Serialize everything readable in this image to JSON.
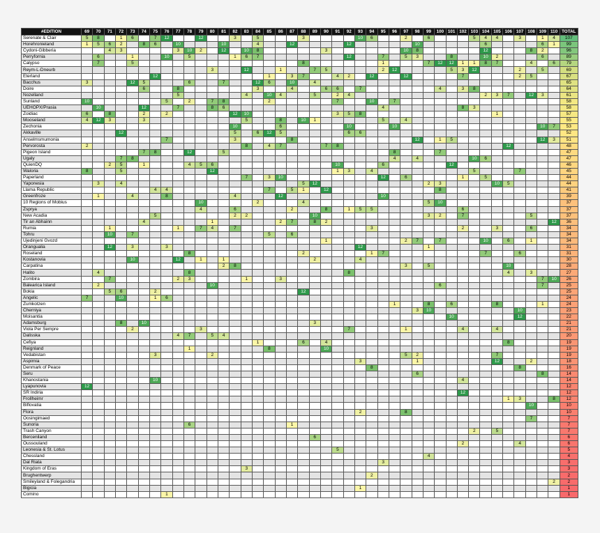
{
  "table": {
    "headers": [
      "#EDITION",
      "69",
      "70",
      "71",
      "72",
      "73",
      "74",
      "75",
      "76",
      "77",
      "78",
      "79",
      "80",
      "81",
      "82",
      "83",
      "84",
      "85",
      "86",
      "87",
      "88",
      "89",
      "90",
      "91",
      "92",
      "93",
      "94",
      "95",
      "96",
      "97",
      "98",
      "99",
      "100",
      "101",
      "102",
      "103",
      "104",
      "105",
      "106",
      "107",
      "108",
      "109",
      "110",
      "TOTAL"
    ],
    "rows": [
      {
        "name": "Serenate & Clair",
        "scores": {
          "69": 5,
          "70": 8,
          "72": 1,
          "73": 6,
          "75": 7,
          "76": 12,
          "79": 12,
          "82": 3,
          "84": 5,
          "88": 3,
          "93": 10,
          "94": 6,
          "97": 2,
          "99": 6,
          "103": 5,
          "104": 4,
          "105": 4,
          "107": 3,
          "109": 1,
          "110": 4
        },
        "total": 107
      },
      {
        "name": "Horehronieland",
        "scores": {
          "69": 1,
          "70": 5,
          "71": 6,
          "72": 2,
          "74": 8,
          "75": 6,
          "77": 10,
          "81": 10,
          "84": 4,
          "87": 12,
          "92": 12,
          "98": 10,
          "104": 6,
          "109": 6,
          "110": 1
        },
        "total": 99
      },
      {
        "name": "Cydoni-Gibberia",
        "scores": {
          "71": 4,
          "72": 3,
          "77": 3,
          "78": 10,
          "79": 2,
          "81": 12,
          "83": 10,
          "84": 8,
          "90": 3,
          "97": 10,
          "98": 8,
          "104": 12,
          "108": 8,
          "109": 2
        },
        "total": 96
      },
      {
        "name": "Perryfornia",
        "scores": {
          "70": 6,
          "73": 1,
          "76": 10,
          "78": 5,
          "82": 1,
          "83": 6,
          "84": 7,
          "92": 12,
          "95": 7,
          "97": 5,
          "98": 3,
          "101": 8,
          "104": 10,
          "105": 2,
          "109": 6
        },
        "total": 89
      },
      {
        "name": "Calypso",
        "scores": {
          "70": 7,
          "73": 5,
          "88": 8,
          "95": 1,
          "99": 7,
          "100": 12,
          "101": 12,
          "102": 1,
          "103": 1,
          "104": 8,
          "105": 7,
          "108": 4,
          "110": 6
        },
        "total": 79
      },
      {
        "name": "Reym-L-Dneurb",
        "scores": {
          "80": 3,
          "83": 12,
          "86": 1,
          "89": 7,
          "90": 5,
          "95": 2,
          "96": 12,
          "101": 5,
          "102": 3,
          "103": 12,
          "107": 2,
          "109": 5
        },
        "total": 69
      },
      {
        "name": "Eterland",
        "scores": {
          "75": 12,
          "85": 1,
          "87": 3,
          "88": 7,
          "91": 4,
          "92": 2,
          "94": 12,
          "97": 12,
          "102": 7,
          "107": 2,
          "108": 5
        },
        "total": 67
      },
      {
        "name": "Bacchus",
        "scores": {
          "69": 3,
          "73": 12,
          "74": 5,
          "78": 6,
          "81": 7,
          "84": 12,
          "85": 6,
          "87": 10,
          "89": 4
        },
        "total": 65
      },
      {
        "name": "Doire",
        "scores": {
          "74": 6,
          "77": 8,
          "84": 3,
          "87": 4,
          "90": 6,
          "91": 6,
          "93": 7,
          "100": 4,
          "102": 3,
          "103": 8
        },
        "total": 64
      },
      {
        "name": "Nozelland",
        "scores": {
          "77": 5,
          "83": 4,
          "85": 10,
          "86": 4,
          "89": 5,
          "91": 2,
          "92": 4,
          "104": 2,
          "105": 3,
          "106": 7,
          "108": 12,
          "109": 3
        },
        "total": 61
      },
      {
        "name": "Sunland",
        "scores": {
          "69": 10,
          "76": 5,
          "78": 2,
          "80": 7,
          "81": 8,
          "85": 2,
          "91": 7,
          "94": 10,
          "96": 7
        },
        "total": 58
      },
      {
        "name": "UEHOPX/Prasia",
        "scores": {
          "70": 10,
          "74": 12,
          "77": 7,
          "80": 8,
          "81": 6,
          "95": 4,
          "102": 8,
          "103": 3
        },
        "total": 58
      },
      {
        "name": "Zoidiac",
        "scores": {
          "69": 6,
          "71": 8,
          "74": 2,
          "76": 2,
          "82": 12,
          "83": 10,
          "91": 3,
          "92": 5,
          "93": 8,
          "105": 1
        },
        "total": 57
      },
      {
        "name": "Mooseland",
        "scores": {
          "69": 4,
          "70": 12,
          "71": 3,
          "74": 3,
          "83": 5,
          "86": 8,
          "88": 10,
          "89": 1,
          "95": 5,
          "97": 4
        },
        "total": 55
      },
      {
        "name": "Zechonia",
        "scores": {
          "82": 10,
          "86": 6,
          "92": 10,
          "96": 10,
          "109": 10,
          "110": 7
        },
        "total": 53
      },
      {
        "name": "Akkaville",
        "scores": {
          "72": 12,
          "82": 5,
          "84": 6,
          "85": 12,
          "86": 5,
          "92": 6,
          "93": 6
        },
        "total": 52
      },
      {
        "name": "Anselmsmumonia",
        "scores": {
          "76": 7,
          "82": 3,
          "87": 8,
          "98": 12,
          "100": 1,
          "101": 5,
          "109": 12,
          "110": 3
        },
        "total": 51
      },
      {
        "name": "Pervorosta",
        "scores": {
          "69": 2,
          "83": 8,
          "85": 4,
          "86": 7,
          "90": 7,
          "91": 8,
          "106": 12
        },
        "total": 48
      },
      {
        "name": "Pigeon Island",
        "scores": {
          "74": 7,
          "75": 8,
          "78": 12,
          "81": 5,
          "96": 8,
          "100": 7
        },
        "total": 47
      },
      {
        "name": "Ugaly",
        "scores": {
          "72": 7,
          "73": 8,
          "96": 4,
          "98": 4,
          "103": 10,
          "104": 6
        },
        "total": 47
      },
      {
        "name": "QuienDQ",
        "scores": {
          "71": 2,
          "72": 5,
          "74": 1,
          "78": 4,
          "79": 5,
          "80": 6,
          "91": 10,
          "95": 6,
          "101": 12
        },
        "total": 46
      },
      {
        "name": "Waloria",
        "scores": {
          "69": 8,
          "72": 5,
          "80": 12,
          "91": 1,
          "92": 3,
          "94": 4,
          "103": 5,
          "107": 7
        },
        "total": 45
      },
      {
        "name": "Paperland",
        "scores": {
          "83": 7,
          "85": 3,
          "86": 10,
          "95": 12,
          "97": 6,
          "102": 1,
          "104": 5
        },
        "total": 44
      },
      {
        "name": "Yaponesia",
        "scores": {
          "70": 3,
          "72": 4,
          "88": 5,
          "89": 12,
          "99": 2,
          "100": 3,
          "105": 10,
          "106": 5
        },
        "total": 44
      },
      {
        "name": "Llama Republic",
        "scores": {
          "75": 4,
          "76": 4,
          "85": 7,
          "87": 5,
          "88": 1,
          "90": 12,
          "100": 8
        },
        "total": 41
      },
      {
        "name": "Greenfroze",
        "scores": {
          "70": 1,
          "73": 4,
          "76": 8,
          "82": 4,
          "86": 12,
          "95": 10
        },
        "total": 39
      },
      {
        "name": "10 Regions of Mobius",
        "scores": {
          "79": 10,
          "84": 2,
          "88": 4,
          "99": 5,
          "100": 10
        },
        "total": 37
      },
      {
        "name": "Zsprya",
        "scores": {
          "79": 4,
          "82": 6,
          "87": 2,
          "90": 8,
          "92": 1,
          "93": 5,
          "94": 5,
          "102": 6
        },
        "total": 37
      },
      {
        "name": "New Acadia",
        "scores": {
          "75": 5,
          "82": 2,
          "83": 2,
          "89": 10,
          "99": 3,
          "100": 2,
          "102": 7,
          "108": 5
        },
        "total": 37
      },
      {
        "name": "Tir an Abhainn",
        "scores": {
          "74": 4,
          "80": 1,
          "86": 2,
          "87": 7,
          "89": 8,
          "90": 2,
          "110": 12
        },
        "total": 36
      },
      {
        "name": "Rumia",
        "scores": {
          "71": 1,
          "77": 1,
          "79": 7,
          "80": 4,
          "82": 7,
          "94": 3,
          "102": 2,
          "105": 3,
          "108": 6
        },
        "total": 34
      },
      {
        "name": "Tohru",
        "scores": {
          "71": 10,
          "73": 7,
          "85": 5,
          "87": 6
        },
        "total": 34
      },
      {
        "name": "Ujedinjeni Gvozd",
        "scores": {
          "90": 1,
          "97": 2,
          "98": 7,
          "100": 7,
          "104": 10,
          "106": 6,
          "108": 1
        },
        "total": 34
      },
      {
        "name": "Orangualia",
        "scores": {
          "71": 12,
          "73": 3,
          "76": 3,
          "93": 12,
          "99": 1
        },
        "total": 31
      },
      {
        "name": "Roseland",
        "scores": {
          "78": 8,
          "88": 2,
          "94": 1,
          "95": 7,
          "104": 7,
          "107": 6
        },
        "total": 31
      },
      {
        "name": "Kostanovia",
        "scores": {
          "73": 10,
          "77": 12,
          "79": 1,
          "81": 1,
          "89": 2,
          "93": 4
        },
        "total": 30
      },
      {
        "name": "Carpatina",
        "scores": {
          "81": 2,
          "82": 8,
          "97": 3,
          "99": 5,
          "106": 10
        },
        "total": 28
      },
      {
        "name": "Halito",
        "scores": {
          "70": 4,
          "78": 8,
          "92": 8,
          "106": 4,
          "108": 3
        },
        "total": 27
      },
      {
        "name": "Zombira",
        "scores": {
          "71": 7,
          "77": 2,
          "78": 3,
          "83": 1,
          "86": 3,
          "109": 7,
          "110": 10
        },
        "total": 26
      },
      {
        "name": "Balearica Island",
        "scores": {
          "70": 2,
          "80": 10,
          "100": 6,
          "109": 7
        },
        "total": 25
      },
      {
        "name": "Bokia",
        "scores": {
          "71": 5,
          "72": 6,
          "75": 2,
          "88": 12
        },
        "total": 25
      },
      {
        "name": "Angelic",
        "scores": {
          "69": 7,
          "72": 10,
          "75": 1,
          "76": 6
        },
        "total": 24
      },
      {
        "name": "Zumkotzen",
        "scores": {
          "96": 1,
          "99": 8,
          "101": 6,
          "105": 8,
          "109": 1
        },
        "total": 24
      },
      {
        "name": "Cherniya",
        "scores": {
          "98": 3,
          "99": 10,
          "107": 10
        },
        "total": 23
      },
      {
        "name": "Moisantia",
        "scores": {
          "101": 10,
          "107": 12
        },
        "total": 22
      },
      {
        "name": "Adamsburg",
        "scores": {
          "72": 8,
          "74": 10,
          "89": 3
        },
        "total": 21
      },
      {
        "name": "Viola Per Sempre",
        "scores": {
          "73": 2,
          "79": 3,
          "92": 7,
          "97": 1,
          "102": 4,
          "105": 4
        },
        "total": 21
      },
      {
        "name": "Dalisska",
        "scores": {
          "77": 4,
          "78": 7,
          "80": 5,
          "81": 4
        },
        "total": 20
      },
      {
        "name": "Cefiya",
        "scores": {
          "84": 1,
          "88": 6,
          "90": 4,
          "106": 8
        },
        "total": 19
      },
      {
        "name": "Reignland",
        "scores": {
          "78": 1,
          "85": 8,
          "90": 10
        },
        "total": 19
      },
      {
        "name": "Vedabistan",
        "scores": {
          "75": 3,
          "80": 2,
          "97": 5,
          "98": 2,
          "105": 7
        },
        "total": 19
      },
      {
        "name": "Aspirnia",
        "scores": {
          "93": 3,
          "98": 1,
          "105": 12,
          "108": 2
        },
        "total": 18
      },
      {
        "name": "Denmark of Peace",
        "scores": {
          "94": 8,
          "107": 8
        },
        "total": 16
      },
      {
        "name": "Seru",
        "scores": {
          "98": 6,
          "109": 8
        },
        "total": 14
      },
      {
        "name": "Khanostania",
        "scores": {
          "75": 10,
          "102": 4
        },
        "total": 14
      },
      {
        "name": "Lyapunovia",
        "scores": {
          "69": 12
        },
        "total": 12
      },
      {
        "name": "SR Indiria",
        "scores": {
          "102": 12
        },
        "total": 12
      },
      {
        "name": "Frollheimr",
        "scores": {
          "106": 1,
          "107": 3,
          "110": 8
        },
        "total": 12
      },
      {
        "name": "Biflovatia",
        "scores": {
          "108": 10
        },
        "total": 10
      },
      {
        "name": "Flora",
        "scores": {
          "93": 2,
          "97": 8
        },
        "total": 10
      },
      {
        "name": "Oosingimaed",
        "scores": {
          "108": 7
        },
        "total": 7
      },
      {
        "name": "Sunoria",
        "scores": {
          "78": 6,
          "87": 1
        },
        "total": 7
      },
      {
        "name": "Trash Canyon",
        "scores": {
          "103": 2,
          "105": 5
        },
        "total": 7
      },
      {
        "name": "Berceniland",
        "scores": {
          "89": 6
        },
        "total": 6
      },
      {
        "name": "Oussouland",
        "scores": {
          "102": 2,
          "107": 4
        },
        "total": 6
      },
      {
        "name": "Leonesia & St. Lotus",
        "scores": {
          "91": 5
        },
        "total": 5
      },
      {
        "name": "Chessland",
        "scores": {
          "99": 4
        },
        "total": 4
      },
      {
        "name": "Dal Riata",
        "scores": {
          "95": 3
        },
        "total": 3
      },
      {
        "name": "Kingdom of Eras",
        "scores": {
          "83": 3
        },
        "total": 3
      },
      {
        "name": "Brughentwerp",
        "scores": {
          "94": 2
        },
        "total": 2
      },
      {
        "name": "Smileyland & Folegandria",
        "scores": {
          "110": 2
        },
        "total": 2
      },
      {
        "name": "Bigicia",
        "scores": {
          "93": 1
        },
        "total": 1
      },
      {
        "name": "Comino",
        "scores": {
          "76": 1
        },
        "total": 1
      }
    ]
  },
  "colors": {
    "header_bg": "#141414",
    "header_text": "#ffffff",
    "row_alt": "#e4e4e4",
    "total_high": "#63be7b",
    "total_mid": "#ffeb84",
    "total_low": "#f8696b"
  }
}
